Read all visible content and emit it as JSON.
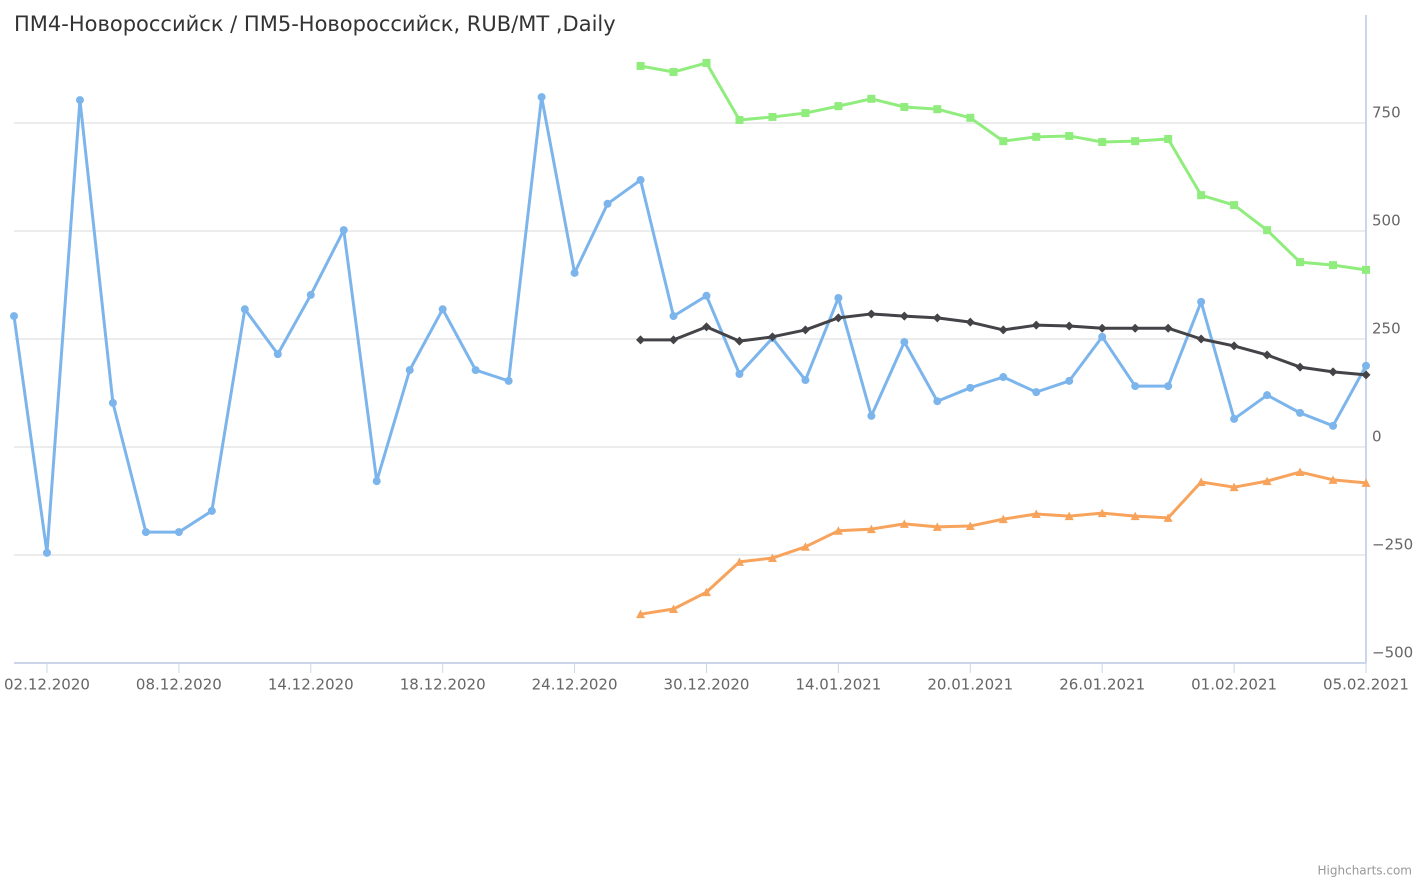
{
  "chart_data": {
    "type": "line",
    "title": "ПМ4-Новороссийск / ПМ5-Новороссийск, RUB/MT ,Daily",
    "credits": "Highcharts.com",
    "categories": [
      null,
      "02.12.2020",
      null,
      null,
      null,
      "08.12.2020",
      null,
      null,
      null,
      "14.12.2020",
      null,
      null,
      null,
      "18.12.2020",
      null,
      null,
      null,
      "24.12.2020",
      null,
      null,
      null,
      "30.12.2020",
      null,
      null,
      null,
      "14.01.2021",
      null,
      null,
      null,
      "20.01.2021",
      null,
      null,
      null,
      "26.01.2021",
      null,
      null,
      null,
      "01.02.2021",
      null,
      null,
      null,
      "05.02.2021"
    ],
    "ylim": [
      -500,
      1000
    ],
    "yticks": [
      {
        "value": -500,
        "label": "−500"
      },
      {
        "value": -250,
        "label": "−250"
      },
      0,
      250,
      500,
      750
    ],
    "grid": true,
    "series": [
      {
        "color": "#7cb5ec",
        "marker": "circle",
        "values": [
          303,
          -245,
          803,
          102,
          -197,
          -197,
          -148,
          319,
          215,
          352,
          502,
          -79,
          178,
          319,
          178,
          153,
          810,
          403,
          563,
          618,
          303,
          350,
          169,
          252,
          155,
          345,
          72,
          243,
          106,
          137,
          162,
          127,
          153,
          255,
          141,
          141,
          336,
          65,
          120,
          79,
          49,
          188
        ]
      },
      {
        "color": "#90ed7d",
        "marker": "square",
        "values": [
          null,
          null,
          null,
          null,
          null,
          null,
          null,
          null,
          null,
          null,
          null,
          null,
          null,
          null,
          null,
          null,
          null,
          null,
          null,
          882,
          868,
          889,
          757,
          764,
          773,
          789,
          806,
          787,
          782,
          762,
          708,
          718,
          720,
          706,
          708,
          713,
          583,
          560,
          502,
          428,
          421,
          410
        ]
      },
      {
        "color": "#434348",
        "marker": "diamond",
        "values": [
          null,
          null,
          null,
          null,
          null,
          null,
          null,
          null,
          null,
          null,
          null,
          null,
          null,
          null,
          null,
          null,
          null,
          null,
          null,
          248,
          248,
          278,
          245,
          255,
          271,
          299,
          308,
          303,
          299,
          289,
          271,
          282,
          280,
          275,
          275,
          275,
          250,
          234,
          213,
          185,
          174,
          167
        ]
      },
      {
        "color": "#f7a35c",
        "marker": "triangle",
        "values": [
          null,
          null,
          null,
          null,
          null,
          null,
          null,
          null,
          null,
          null,
          null,
          null,
          null,
          null,
          null,
          null,
          null,
          null,
          null,
          -387,
          -375,
          -336,
          -266,
          -257,
          -231,
          -194,
          -190,
          -178,
          -185,
          -183,
          -167,
          -155,
          -160,
          -153,
          -160,
          -164,
          -81,
          -93,
          -79,
          -58,
          -76,
          -83
        ]
      }
    ]
  }
}
